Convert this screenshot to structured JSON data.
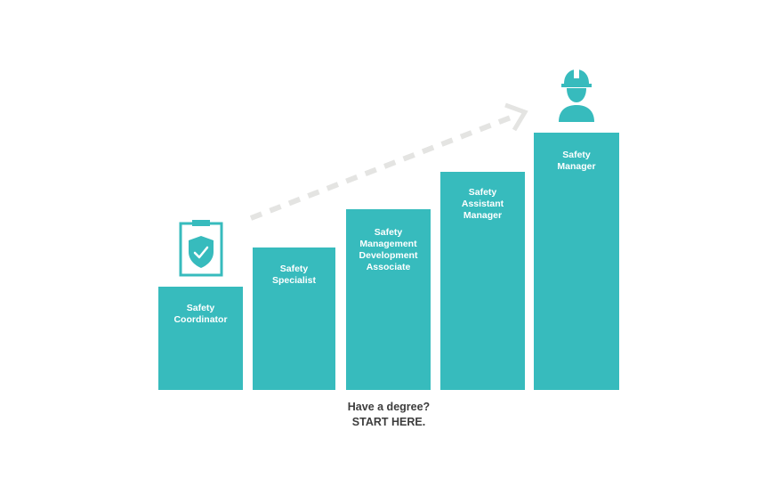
{
  "steps": [
    {
      "label": "Safety\nCoordinator"
    },
    {
      "label": "Safety\nSpecialist"
    },
    {
      "label": "Safety\nManagement\nDevelopment\nAssociate"
    },
    {
      "label": "Safety\nAssistant\nManager"
    },
    {
      "label": "Safety\nManager"
    }
  ],
  "caption": {
    "line1": "Have a degree?",
    "line2": "START HERE."
  },
  "colors": {
    "teal": "#37bbbd",
    "arrow": "#e4e4e2",
    "text": "#3d3d3d"
  },
  "icons": {
    "start": "clipboard-shield-check-icon",
    "goal": "hardhat-worker-icon"
  }
}
